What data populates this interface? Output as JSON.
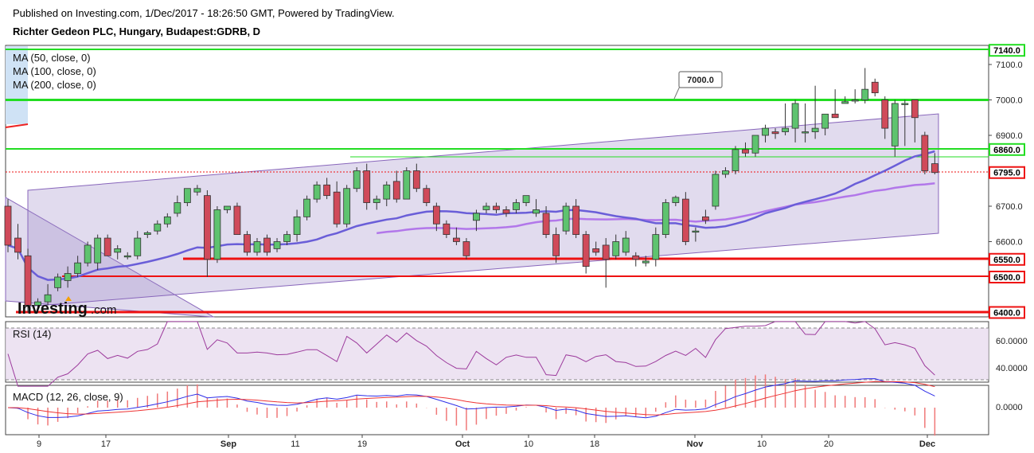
{
  "header": {
    "published": "Published on Investing.com, 1/Dec/2017 - 18:26:50 GMT, Powered by TradingView.",
    "symbol": "Richter Gedeon PLC, Hungary, Budapest:GDRB, D"
  },
  "legend": {
    "ma50": "MA (50, close, 0)",
    "ma100": "MA (100, close, 0)",
    "ma200": "MA (200, close, 0)"
  },
  "logo": {
    "brand": "Investing",
    "suffix": ".com"
  },
  "colors": {
    "up": "#5ec36f",
    "down": "#d04a5a",
    "green_line": "#22dd22",
    "red_line": "#ee1111",
    "ma50": "#b277ea",
    "ma100": "#6a5ed8",
    "channel": "#8866bb"
  },
  "chart_data": {
    "type": "candlestick",
    "x_ticks": [
      "9",
      "17",
      "Sep",
      "11",
      "19",
      "Oct",
      "10",
      "18",
      "Nov",
      "10",
      "20",
      "Dec"
    ],
    "price_axis": {
      "ylim": [
        6370,
        7150
      ],
      "ticks": [
        "7100.0",
        "7000.0",
        "6900.0",
        "6800.0",
        "6700.0",
        "6600.0"
      ]
    },
    "price_levels": [
      {
        "label": "7140.0",
        "value": 7140,
        "color": "#22dd22"
      },
      {
        "label": "6860.0",
        "value": 6860,
        "color": "#22dd22"
      },
      {
        "label": "6795.0",
        "value": 6795,
        "color": "#ee1111"
      },
      {
        "label": "6550.0",
        "value": 6550,
        "color": "#ee1111"
      },
      {
        "label": "6500.0",
        "value": 6500,
        "color": "#ee1111"
      },
      {
        "label": "6400.0",
        "value": 6400,
        "color": "#ee1111"
      }
    ],
    "annotation": {
      "label": "7000.0",
      "value": 7000
    },
    "horizontal_lines": [
      7000,
      6550,
      6500
    ],
    "candles": [
      [
        6700,
        6720,
        6570,
        6590
      ],
      [
        6610,
        6650,
        6550,
        6570
      ],
      [
        6560,
        6580,
        6400,
        6420
      ],
      [
        6420,
        6440,
        6400,
        6430
      ],
      [
        6430,
        6480,
        6420,
        6450
      ],
      [
        6470,
        6510,
        6460,
        6500
      ],
      [
        6490,
        6530,
        6470,
        6510
      ],
      [
        6510,
        6560,
        6500,
        6540
      ],
      [
        6540,
        6600,
        6530,
        6590
      ],
      [
        6540,
        6620,
        6520,
        6610
      ],
      [
        6610,
        6620,
        6560,
        6560
      ],
      [
        6570,
        6590,
        6550,
        6580
      ],
      [
        6560,
        6570,
        6550,
        6560
      ],
      [
        6560,
        6630,
        6550,
        6610
      ],
      [
        6620,
        6630,
        6610,
        6625
      ],
      [
        6630,
        6660,
        6620,
        6650
      ],
      [
        6650,
        6680,
        6640,
        6670
      ],
      [
        6680,
        6730,
        6670,
        6710
      ],
      [
        6710,
        6750,
        6700,
        6750
      ],
      [
        6740,
        6760,
        6730,
        6750
      ],
      [
        6730,
        6745,
        6500,
        6550
      ],
      [
        6550,
        6700,
        6540,
        6690
      ],
      [
        6690,
        6700,
        6680,
        6700
      ],
      [
        6700,
        6710,
        6620,
        6620
      ],
      [
        6620,
        6630,
        6560,
        6570
      ],
      [
        6570,
        6610,
        6560,
        6600
      ],
      [
        6610,
        6620,
        6560,
        6570
      ],
      [
        6580,
        6610,
        6570,
        6600
      ],
      [
        6600,
        6630,
        6590,
        6620
      ],
      [
        6620,
        6690,
        6600,
        6670
      ],
      [
        6670,
        6730,
        6660,
        6720
      ],
      [
        6720,
        6770,
        6710,
        6760
      ],
      [
        6760,
        6780,
        6720,
        6730
      ],
      [
        6740,
        6770,
        6640,
        6650
      ],
      [
        6650,
        6760,
        6640,
        6750
      ],
      [
        6750,
        6810,
        6740,
        6800
      ],
      [
        6800,
        6820,
        6690,
        6710
      ],
      [
        6710,
        6730,
        6690,
        6720
      ],
      [
        6720,
        6770,
        6700,
        6760
      ],
      [
        6770,
        6800,
        6710,
        6720
      ],
      [
        6720,
        6810,
        6720,
        6800
      ],
      [
        6800,
        6820,
        6740,
        6750
      ],
      [
        6750,
        6760,
        6700,
        6710
      ],
      [
        6700,
        6710,
        6630,
        6650
      ],
      [
        6650,
        6660,
        6610,
        6620
      ],
      [
        6610,
        6640,
        6590,
        6600
      ],
      [
        6600,
        6610,
        6550,
        6560
      ],
      [
        6660,
        6690,
        6630,
        6680
      ],
      [
        6690,
        6710,
        6680,
        6700
      ],
      [
        6700,
        6710,
        6680,
        6690
      ],
      [
        6690,
        6700,
        6670,
        6680
      ],
      [
        6690,
        6720,
        6680,
        6710
      ],
      [
        6710,
        6730,
        6700,
        6730
      ],
      [
        6680,
        6720,
        6670,
        6690
      ],
      [
        6680,
        6700,
        6610,
        6620
      ],
      [
        6620,
        6640,
        6540,
        6560
      ],
      [
        6630,
        6710,
        6620,
        6700
      ],
      [
        6700,
        6720,
        6610,
        6620
      ],
      [
        6620,
        6630,
        6510,
        6530
      ],
      [
        6580,
        6600,
        6560,
        6570
      ],
      [
        6590,
        6610,
        6470,
        6550
      ],
      [
        6560,
        6620,
        6550,
        6600
      ],
      [
        6570,
        6630,
        6560,
        6610
      ],
      [
        6560,
        6570,
        6530,
        6550
      ],
      [
        6540,
        6560,
        6530,
        6545
      ],
      [
        6550,
        6640,
        6530,
        6620
      ],
      [
        6620,
        6720,
        6610,
        6710
      ],
      [
        6710,
        6730,
        6700,
        6725
      ],
      [
        6720,
        6740,
        6590,
        6600
      ],
      [
        6630,
        6640,
        6600,
        6630
      ],
      [
        6670,
        6690,
        6650,
        6660
      ],
      [
        6700,
        6800,
        6690,
        6790
      ],
      [
        6790,
        6810,
        6780,
        6800
      ],
      [
        6800,
        6870,
        6790,
        6860
      ],
      [
        6860,
        6880,
        6840,
        6850
      ],
      [
        6850,
        6900,
        6840,
        6900
      ],
      [
        6900,
        6930,
        6880,
        6920
      ],
      [
        6910,
        6920,
        6890,
        6905
      ],
      [
        6910,
        6990,
        6900,
        6920
      ],
      [
        6920,
        7000,
        6880,
        6990
      ],
      [
        6910,
        6990,
        6880,
        6910
      ],
      [
        6910,
        7040,
        6890,
        6920
      ],
      [
        6920,
        6960,
        6900,
        6960
      ],
      [
        6960,
        7030,
        6950,
        6950
      ],
      [
        6990,
        7010,
        6990,
        6995
      ],
      [
        7000,
        7030,
        6990,
        7000
      ],
      [
        7000,
        7090,
        6990,
        7030
      ],
      [
        7050,
        7060,
        7010,
        7020
      ],
      [
        7000,
        7010,
        6890,
        6920
      ],
      [
        6870,
        7000,
        6840,
        6990
      ],
      [
        6990,
        7000,
        6870,
        6990
      ],
      [
        7000,
        7000,
        6880,
        6950
      ],
      [
        6900,
        6910,
        6790,
        6800
      ],
      [
        6820,
        6850,
        6790,
        6795
      ]
    ],
    "rsi": {
      "label": "RSI (14)",
      "ticks": [
        "60.0000",
        "40.0000"
      ],
      "ylim": [
        28,
        75
      ],
      "bands": [
        70,
        30
      ]
    },
    "macd": {
      "label": "MACD (12, 26, close, 9)",
      "ticks": [
        "0.0000"
      ]
    }
  }
}
